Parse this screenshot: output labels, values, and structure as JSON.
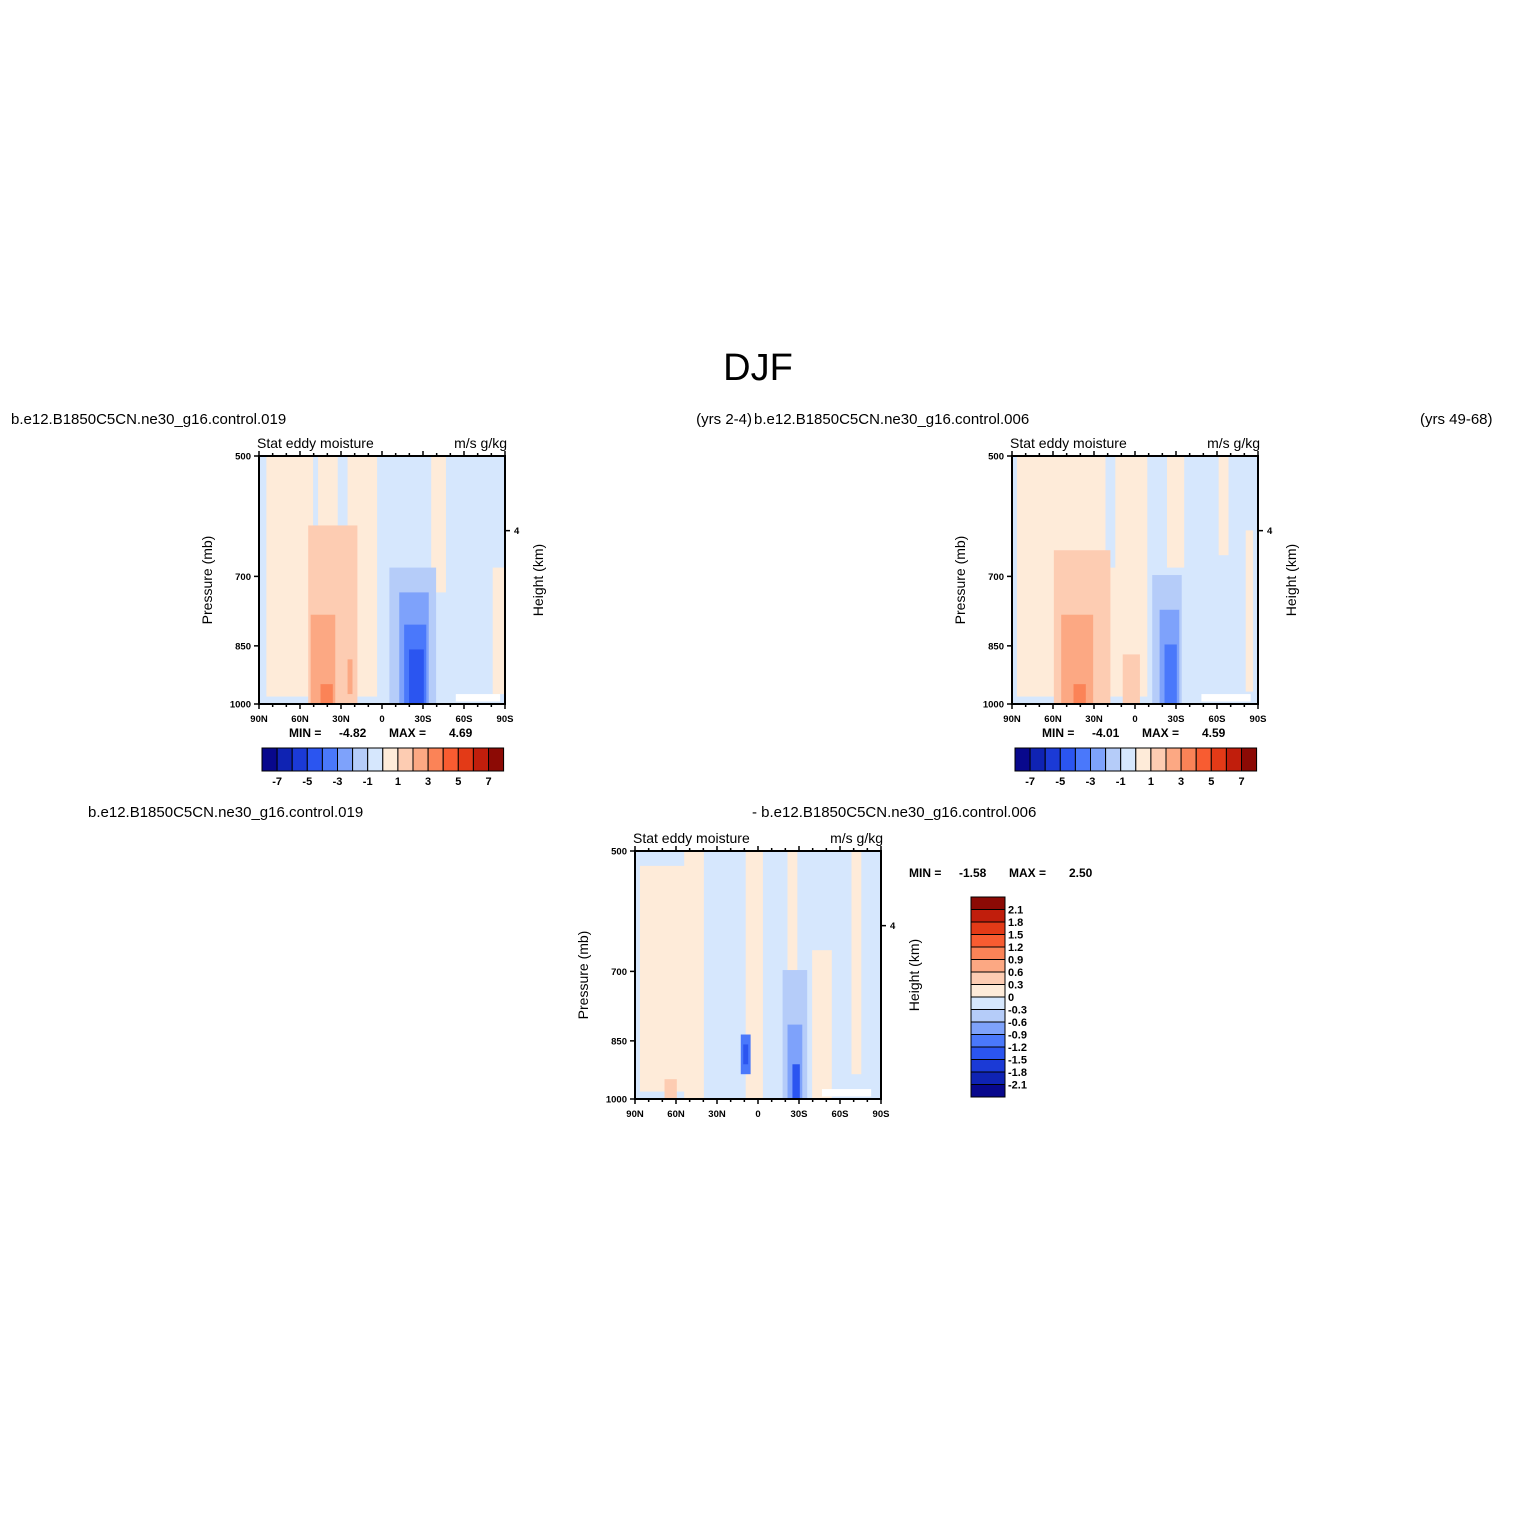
{
  "page": {
    "title": "DJF"
  },
  "labels": {
    "left_case": "b.e12.B1850C5CN.ne30_g16.control.019",
    "left_yrs": "(yrs 2-4)",
    "right_case": "b.e12.B1850C5CN.ne30_g16.control.006",
    "right_yrs": "(yrs 49-68)",
    "diff_case_a": "b.e12.B1850C5CN.ne30_g16.control.019",
    "diff_case_b": "- b.e12.B1850C5CN.ne30_g16.control.006"
  },
  "colors": {
    "neg": [
      "#08088c",
      "#0f23b3",
      "#1b3ad6",
      "#2b55f0",
      "#4a78fb",
      "#7ea2fb",
      "#b5ccf9",
      "#d6e7fd"
    ],
    "pos": [
      "#feebd9",
      "#fdccb2",
      "#fca883",
      "#fb8357",
      "#f85c31",
      "#e33a17",
      "#c11e0c",
      "#8c0a05"
    ]
  },
  "chart_data": [
    {
      "type": "heatmap",
      "panel": "control.019",
      "title_left": "Stat eddy moisture",
      "title_right": "m/s g/kg",
      "ylabel": "Pressure (mb)",
      "ylabel_right": "Height (km)",
      "x_ticks": [
        "90N",
        "60N",
        "30N",
        "0",
        "30S",
        "60S",
        "90S"
      ],
      "y_ticks": [
        "500",
        "700",
        "850",
        "1000"
      ],
      "y_ticks_right": [
        "4"
      ],
      "ylim": [
        1000,
        500
      ],
      "min_label": "MIN =",
      "min_value": "-4.82",
      "max_label": "MAX =",
      "max_value": "4.69",
      "levels": [
        -7,
        -6,
        -5,
        -4,
        -3,
        -2,
        -1,
        0,
        1,
        2,
        3,
        4,
        5,
        6,
        7
      ],
      "colorbar_labels": [
        "-7",
        "-5",
        "-3",
        "-1",
        "1",
        "3",
        "5",
        "7"
      ]
    },
    {
      "type": "heatmap",
      "panel": "control.006",
      "title_left": "Stat eddy moisture",
      "title_right": "m/s g/kg",
      "ylabel": "Pressure (mb)",
      "ylabel_right": "Height (km)",
      "x_ticks": [
        "90N",
        "60N",
        "30N",
        "0",
        "30S",
        "60S",
        "90S"
      ],
      "y_ticks": [
        "500",
        "700",
        "850",
        "1000"
      ],
      "y_ticks_right": [
        "4"
      ],
      "ylim": [
        1000,
        500
      ],
      "min_label": "MIN =",
      "min_value": "-4.01",
      "max_label": "MAX =",
      "max_value": "4.59",
      "levels": [
        -7,
        -6,
        -5,
        -4,
        -3,
        -2,
        -1,
        0,
        1,
        2,
        3,
        4,
        5,
        6,
        7
      ],
      "colorbar_labels": [
        "-7",
        "-5",
        "-3",
        "-1",
        "1",
        "3",
        "5",
        "7"
      ]
    },
    {
      "type": "heatmap",
      "panel": "difference",
      "title_left": "Stat eddy moisture",
      "title_right": "m/s g/kg",
      "ylabel": "Pressure (mb)",
      "ylabel_right": "Height (km)",
      "x_ticks": [
        "90N",
        "60N",
        "30N",
        "0",
        "30S",
        "60S",
        "90S"
      ],
      "y_ticks": [
        "500",
        "700",
        "850",
        "1000"
      ],
      "y_ticks_right": [
        "4"
      ],
      "ylim": [
        1000,
        500
      ],
      "min_label": "MIN =",
      "min_value": "-1.58",
      "max_label": "MAX =",
      "max_value": "2.50",
      "levels": [
        -2.1,
        -1.8,
        -1.5,
        -1.2,
        -0.9,
        -0.6,
        -0.3,
        0,
        0.3,
        0.6,
        0.9,
        1.2,
        1.5,
        1.8,
        2.1
      ],
      "colorbar_labels": [
        "2.1",
        "1.8",
        "1.5",
        "1.2",
        "0.9",
        "0.6",
        "0.3",
        "0",
        "-0.3",
        "-0.6",
        "-0.9",
        "-1.2",
        "-1.5",
        "-1.8",
        "-2.1"
      ]
    }
  ]
}
